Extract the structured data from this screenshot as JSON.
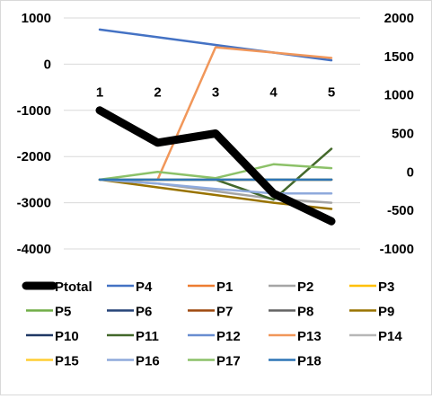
{
  "chart_data": {
    "type": "line",
    "categories": [
      "1",
      "2",
      "3",
      "4",
      "5"
    ],
    "axes": {
      "primary": {
        "ylim": [
          -4000,
          1000
        ],
        "ticks": [
          1000,
          0,
          -1000,
          -2000,
          -3000,
          -4000
        ],
        "tick_labels": [
          "1000",
          "0",
          "-1000",
          "-2000",
          "-3000",
          "-4000"
        ]
      },
      "secondary": {
        "ylim": [
          -1000,
          2000
        ],
        "ticks": [
          2000,
          1500,
          1000,
          500,
          0,
          -500,
          -1000
        ],
        "tick_labels": [
          "2000",
          "1500",
          "1000",
          "500",
          "0",
          "-500",
          "-1000"
        ]
      },
      "category_axis_at": 0
    },
    "grid": true,
    "legend_position": "bottom",
    "series": [
      {
        "name": "Ptotal",
        "axis": "primary",
        "color": "#000000",
        "width": 9,
        "values": [
          -1000,
          -1700,
          -1500,
          -2800,
          -3400
        ]
      },
      {
        "name": "P4",
        "axis": "secondary",
        "color": "#4472C4",
        "width": 2.5,
        "values": [
          1850,
          1750,
          1650,
          1550,
          1450
        ]
      },
      {
        "name": "P1",
        "axis": "secondary",
        "color": "#ED7D31",
        "width": 2.5,
        "values": [
          -100,
          -100,
          -100,
          -100,
          -100
        ]
      },
      {
        "name": "P2",
        "axis": "secondary",
        "color": "#A5A5A5",
        "width": 2.5,
        "values": [
          -100,
          -150,
          -250,
          -350,
          -400
        ]
      },
      {
        "name": "P3",
        "axis": "secondary",
        "color": "#FFC000",
        "width": 2.5,
        "values": [
          -100,
          -100,
          -100,
          -100,
          -100
        ]
      },
      {
        "name": "P5",
        "axis": "secondary",
        "color": "#70AD47",
        "width": 2.5,
        "values": [
          -100,
          -100,
          -100,
          -100,
          -100
        ]
      },
      {
        "name": "P6",
        "axis": "secondary",
        "color": "#264478",
        "width": 2.5,
        "values": [
          -100,
          -100,
          -100,
          -100,
          -100
        ]
      },
      {
        "name": "P7",
        "axis": "secondary",
        "color": "#9E480E",
        "width": 2.5,
        "values": [
          -100,
          -100,
          -100,
          -100,
          -100
        ]
      },
      {
        "name": "P8",
        "axis": "secondary",
        "color": "#636363",
        "width": 2.5,
        "values": [
          -100,
          -100,
          -100,
          -100,
          -100
        ]
      },
      {
        "name": "P9",
        "axis": "secondary",
        "color": "#997300",
        "width": 2.5,
        "values": [
          -100,
          -200,
          -300,
          -400,
          -480
        ]
      },
      {
        "name": "P10",
        "axis": "secondary",
        "color": "#1F3864",
        "width": 2.5,
        "values": [
          -100,
          -100,
          -100,
          -100,
          -100
        ]
      },
      {
        "name": "P11",
        "axis": "secondary",
        "color": "#43682B",
        "width": 2.5,
        "values": [
          -100,
          -100,
          -100,
          -360,
          300
        ]
      },
      {
        "name": "P12",
        "axis": "secondary",
        "color": "#698ED0",
        "width": 2.5,
        "values": [
          -100,
          -100,
          -100,
          -100,
          -100
        ]
      },
      {
        "name": "P13",
        "axis": "secondary",
        "color": "#F1975A",
        "width": 2.5,
        "values": [
          -100,
          -100,
          1620,
          1550,
          1480
        ]
      },
      {
        "name": "P14",
        "axis": "secondary",
        "color": "#B7B7B7",
        "width": 2.5,
        "values": [
          -100,
          -100,
          -100,
          -100,
          -100
        ]
      },
      {
        "name": "P15",
        "axis": "secondary",
        "color": "#FFCD33",
        "width": 2.5,
        "values": [
          -100,
          -100,
          -100,
          -100,
          -100
        ]
      },
      {
        "name": "P16",
        "axis": "secondary",
        "color": "#8FAADC",
        "width": 2.5,
        "values": [
          -100,
          -150,
          -220,
          -280,
          -280
        ]
      },
      {
        "name": "P17",
        "axis": "secondary",
        "color": "#8CC168",
        "width": 2.5,
        "values": [
          -100,
          0,
          -80,
          100,
          50
        ]
      },
      {
        "name": "P18",
        "axis": "secondary",
        "color": "#2E75B6",
        "width": 2.5,
        "values": [
          -100,
          -100,
          -100,
          -100,
          -100
        ]
      }
    ]
  }
}
